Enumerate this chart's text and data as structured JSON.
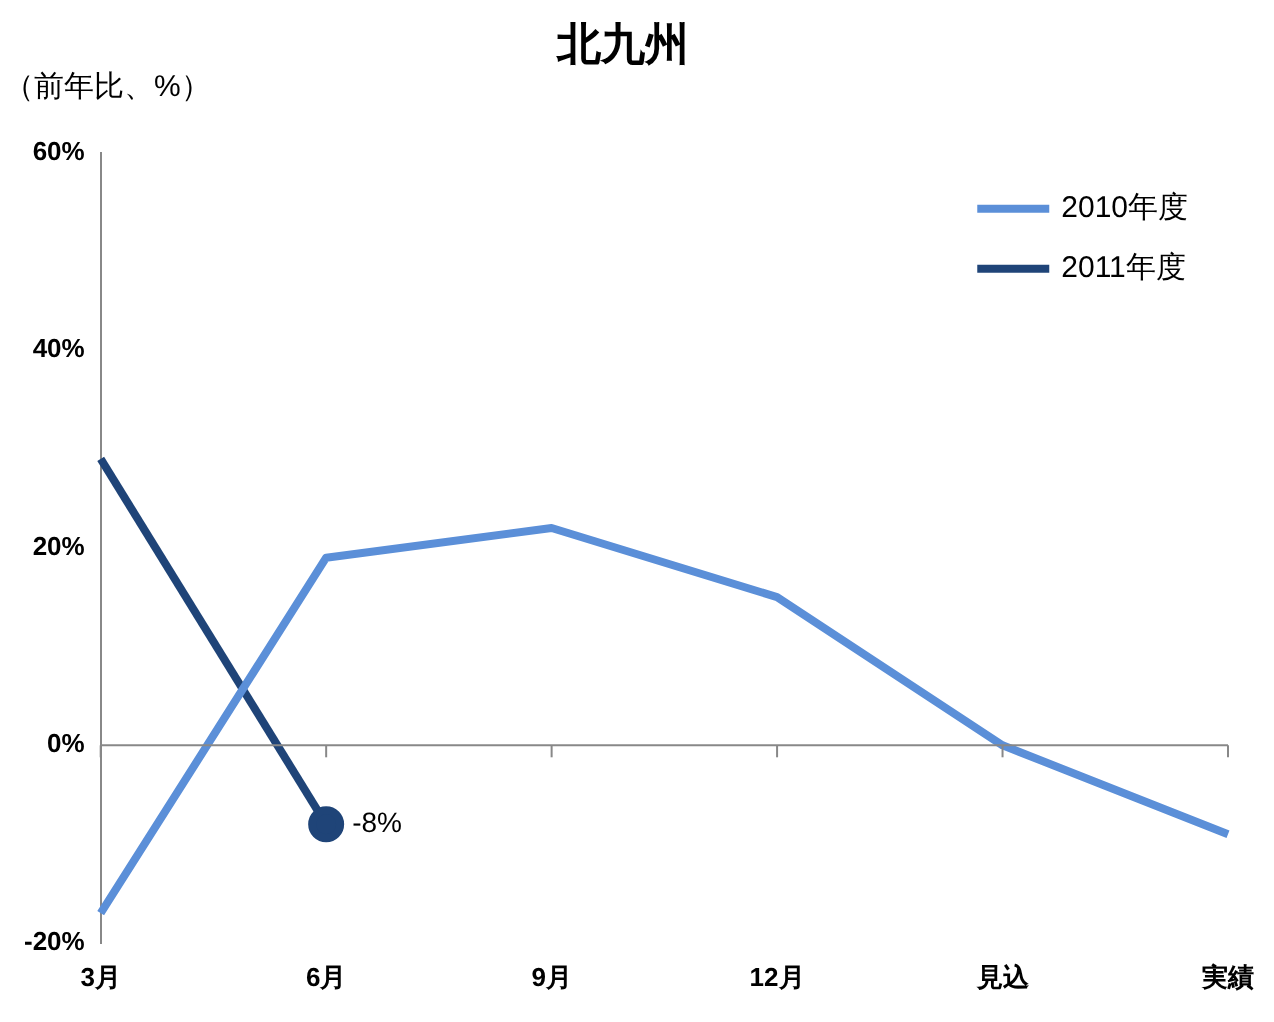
{
  "chart_data": {
    "type": "line",
    "title": "北九州",
    "ylabel": "（前年比、%）",
    "categories": [
      "3月",
      "6月",
      "9月",
      "12月",
      "見込",
      "実績"
    ],
    "series": [
      {
        "name": "2010年度",
        "color": "#5b8fd8",
        "values": [
          -17,
          19,
          22,
          15,
          0,
          -9
        ]
      },
      {
        "name": "2011年度",
        "color": "#1f4478",
        "values": [
          29,
          -8,
          null,
          null,
          null,
          null
        ],
        "value_labels": [
          null,
          "-8%",
          null,
          null,
          null,
          null
        ]
      }
    ],
    "ylim": [
      -20,
      60
    ],
    "yticks": [
      {
        "value": -20,
        "label": "-20%"
      },
      {
        "value": 0,
        "label": "0%"
      },
      {
        "value": 20,
        "label": "20%"
      },
      {
        "value": 40,
        "label": "40%"
      },
      {
        "value": 60,
        "label": "60%"
      }
    ],
    "ref_lines": [
      {
        "axis": "y",
        "value": 0,
        "color": "#888888"
      }
    ],
    "grid": false,
    "legend": "top right"
  }
}
